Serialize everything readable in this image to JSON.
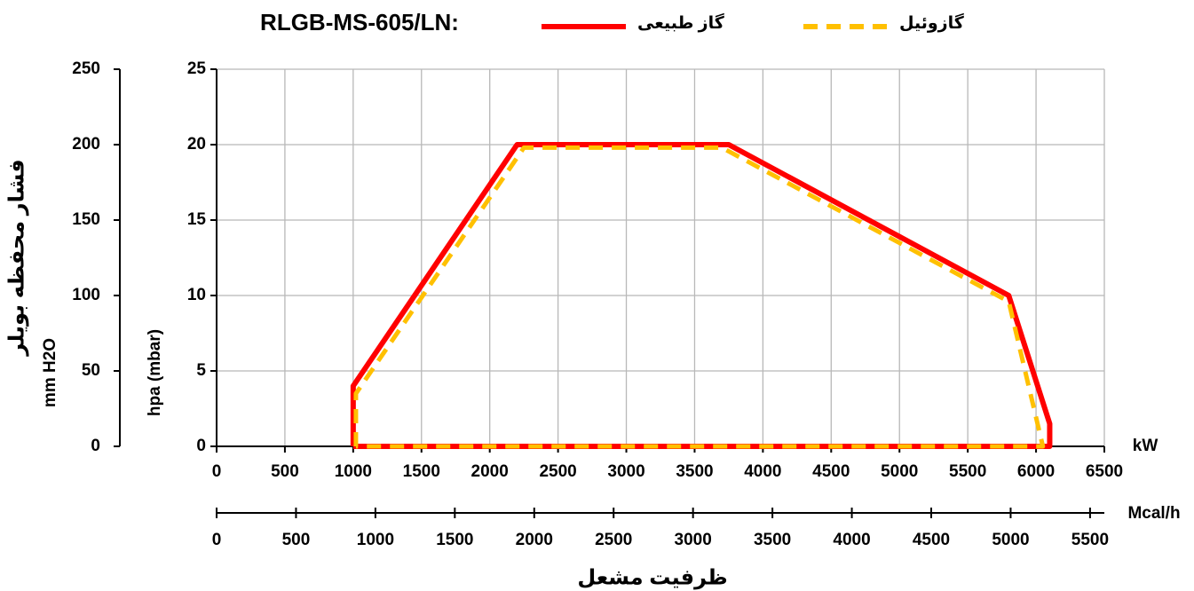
{
  "chart_data": {
    "type": "line",
    "title": "RLGB-MS-605/LN:",
    "xlabel": "kW",
    "x2label": "Mcal/h",
    "ylabel": "hpa (mbar)",
    "y2label": "mm H2O",
    "y_title": "فشار محفظه بویلر",
    "x_title": "ظرفیت مشعل",
    "xlim": [
      0,
      6500
    ],
    "xticks": [
      0,
      500,
      1000,
      1500,
      2000,
      2500,
      3000,
      3500,
      4000,
      4500,
      5000,
      5500,
      6000,
      6500
    ],
    "x2lim": [
      0,
      5590
    ],
    "x2ticks": [
      0,
      500,
      1000,
      1500,
      2000,
      2500,
      3000,
      3500,
      4000,
      4500,
      5000,
      5500
    ],
    "ylim": [
      0,
      25
    ],
    "yticks": [
      0,
      5,
      10,
      15,
      20,
      25
    ],
    "y2lim": [
      0,
      250
    ],
    "y2ticks": [
      0,
      50,
      100,
      150,
      200,
      250
    ],
    "grid": true,
    "series": [
      {
        "name": "گاز طبیعی",
        "color": "#ff0000",
        "dashed": false,
        "x": [
          1000,
          1000,
          2200,
          3750,
          5800,
          6100,
          6100,
          1000
        ],
        "values": [
          0,
          4,
          20,
          20,
          10,
          1.5,
          0,
          0
        ]
      },
      {
        "name": "گازوئیل",
        "color": "#ffc000",
        "dashed": true,
        "x": [
          1020,
          1020,
          2250,
          3700,
          5800,
          6050,
          1020
        ],
        "values": [
          0,
          3.5,
          19.8,
          19.8,
          9.6,
          0,
          0
        ]
      }
    ]
  }
}
